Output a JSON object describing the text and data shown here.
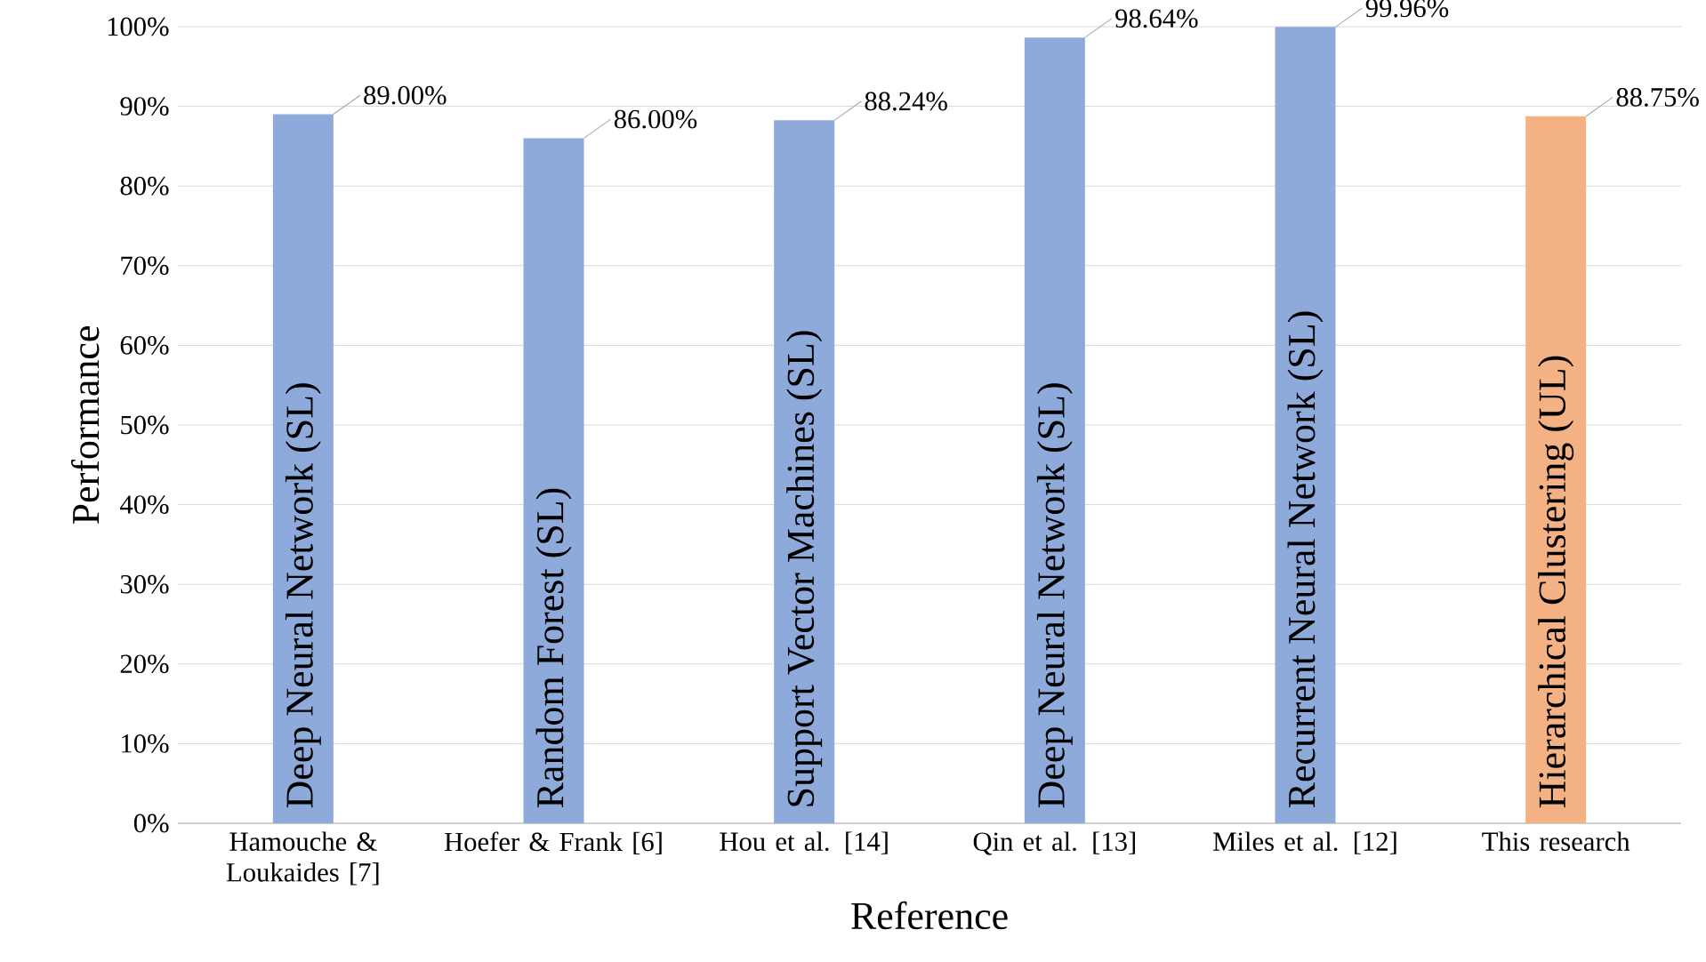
{
  "chart_data": {
    "type": "bar",
    "xlabel": "Reference",
    "ylabel": "Performance",
    "categories": [
      "Hamouche & Loukaides [7]",
      "Hoefer & Frank [6]",
      "Hou et al. [14]",
      "Qin et al. [13]",
      "Miles et al. [12]",
      "This research"
    ],
    "values": [
      89.0,
      86.0,
      88.24,
      98.64,
      99.96,
      88.75
    ],
    "colors": [
      "#8eaadb",
      "#8eaadb",
      "#8eaadb",
      "#8eaadb",
      "#8eaadb",
      "#f4b183"
    ],
    "value_labels": [
      "89.00%",
      "86.00%",
      "88.24%",
      "98.64%",
      "99.96%",
      "88.75%"
    ],
    "ylim": [
      0,
      100
    ],
    "yticks": [
      {
        "value": 0,
        "label": "0%"
      },
      {
        "value": 10,
        "label": "10%"
      },
      {
        "value": 20,
        "label": "20%"
      },
      {
        "value": 30,
        "label": "30%"
      },
      {
        "value": 40,
        "label": "40%"
      },
      {
        "value": 50,
        "label": "50%"
      },
      {
        "value": 60,
        "label": "60%"
      },
      {
        "value": 70,
        "label": "70%"
      },
      {
        "value": 80,
        "label": "80%"
      },
      {
        "value": 90,
        "label": "90%"
      },
      {
        "value": 100,
        "label": "100%"
      }
    ],
    "grid": "y",
    "annotations": [
      {
        "text": "Deep Neural Network (SL)",
        "x": "Hamouche & Loukaides [7]",
        "y": 0
      },
      {
        "text": "Random Forest (SL)",
        "x": "Hoefer & Frank [6]",
        "y": 0
      },
      {
        "text": "Support Vector Machines (SL)",
        "x": "Hou et al. [14]",
        "y": 0
      },
      {
        "text": "Deep Neural Network (SL)",
        "x": "Qin et al. [13]",
        "y": 0
      },
      {
        "text": "Recurrent Neural Network (SL)",
        "x": "Miles et al. [12]",
        "y": 0
      },
      {
        "text": "Hierarchical Clustering (UL)",
        "x": "This research",
        "y": 0
      }
    ]
  }
}
